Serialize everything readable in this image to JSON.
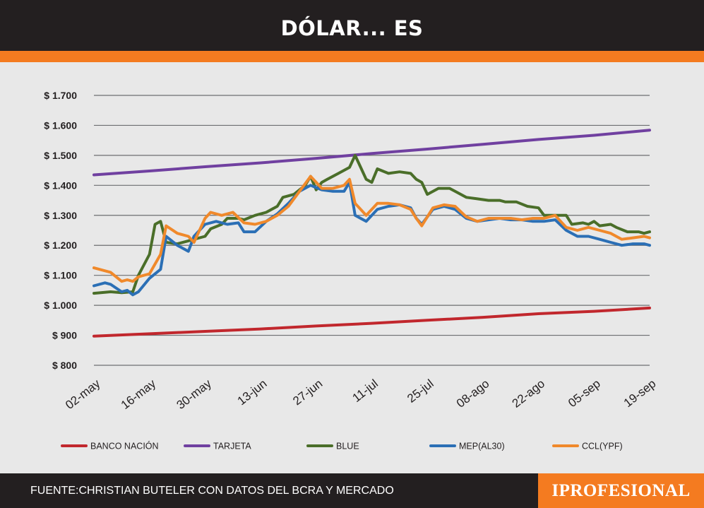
{
  "header": {
    "title": "DÓLAR... ES"
  },
  "footer": {
    "source": "FUENTE:CHRISTIAN BUTELER CON DATOS DEL BCRA Y MERCADO",
    "brand": "IPROFESIONAL"
  },
  "colors": {
    "header_bg": "#231f20",
    "accent": "#f47b20",
    "grid": "#6d6e71",
    "background": "#e8e8e8"
  },
  "chart_data": {
    "type": "line",
    "ylim": [
      800,
      1700
    ],
    "y_ticks": [
      {
        "value": 800,
        "label": "$ 800"
      },
      {
        "value": 900,
        "label": "$ 900"
      },
      {
        "value": 1000,
        "label": "$ 1.000"
      },
      {
        "value": 1100,
        "label": "$ 1.100"
      },
      {
        "value": 1200,
        "label": "$ 1.200"
      },
      {
        "value": 1300,
        "label": "$ 1.300"
      },
      {
        "value": 1400,
        "label": "$ 1.400"
      },
      {
        "value": 1500,
        "label": "$ 1.500"
      },
      {
        "value": 1600,
        "label": "$ 1.600"
      },
      {
        "value": 1700,
        "label": "$ 1.700"
      }
    ],
    "x_ticks": [
      "02-may",
      "16-may",
      "30-may",
      "13-jun",
      "27-jun",
      "11-jul",
      "25-jul",
      "08-ago",
      "22-ago",
      "05-sep",
      "19-sep"
    ],
    "grid": true,
    "legend_position": "bottom",
    "series": [
      {
        "name": "BANCO NACIÓN",
        "color": "#c1272d",
        "points": [
          [
            0,
            897
          ],
          [
            10,
            905
          ],
          [
            20,
            913
          ],
          [
            30,
            921
          ],
          [
            40,
            931
          ],
          [
            50,
            940
          ],
          [
            60,
            950
          ],
          [
            70,
            960
          ],
          [
            80,
            972
          ],
          [
            90,
            980
          ],
          [
            100,
            991
          ]
        ]
      },
      {
        "name": "TARJETA",
        "color": "#7040a0",
        "points": [
          [
            0,
            1435
          ],
          [
            10,
            1448
          ],
          [
            20,
            1462
          ],
          [
            30,
            1475
          ],
          [
            40,
            1490
          ],
          [
            50,
            1506
          ],
          [
            60,
            1521
          ],
          [
            70,
            1537
          ],
          [
            80,
            1553
          ],
          [
            90,
            1567
          ],
          [
            100,
            1584
          ]
        ]
      },
      {
        "name": "BLUE",
        "color": "#4a6e29",
        "points": [
          [
            0,
            1040
          ],
          [
            3,
            1045
          ],
          [
            5,
            1042
          ],
          [
            7,
            1045
          ],
          [
            8,
            1100
          ],
          [
            10,
            1170
          ],
          [
            11,
            1270
          ],
          [
            12,
            1280
          ],
          [
            13,
            1210
          ],
          [
            15,
            1205
          ],
          [
            17,
            1215
          ],
          [
            18,
            1220
          ],
          [
            20,
            1230
          ],
          [
            21,
            1255
          ],
          [
            23,
            1270
          ],
          [
            24,
            1290
          ],
          [
            26,
            1290
          ],
          [
            27,
            1285
          ],
          [
            29,
            1300
          ],
          [
            31,
            1310
          ],
          [
            33,
            1330
          ],
          [
            34,
            1360
          ],
          [
            36,
            1370
          ],
          [
            38,
            1400
          ],
          [
            39,
            1430
          ],
          [
            40,
            1385
          ],
          [
            41,
            1410
          ],
          [
            42,
            1420
          ],
          [
            44,
            1440
          ],
          [
            46,
            1460
          ],
          [
            47,
            1500
          ],
          [
            48,
            1460
          ],
          [
            49,
            1420
          ],
          [
            50,
            1410
          ],
          [
            51,
            1455
          ],
          [
            53,
            1440
          ],
          [
            55,
            1445
          ],
          [
            57,
            1440
          ],
          [
            58,
            1420
          ],
          [
            59,
            1410
          ],
          [
            60,
            1370
          ],
          [
            62,
            1390
          ],
          [
            64,
            1390
          ],
          [
            65,
            1380
          ],
          [
            67,
            1360
          ],
          [
            69,
            1355
          ],
          [
            71,
            1350
          ],
          [
            73,
            1350
          ],
          [
            74,
            1345
          ],
          [
            76,
            1345
          ],
          [
            78,
            1330
          ],
          [
            80,
            1325
          ],
          [
            81,
            1300
          ],
          [
            83,
            1300
          ],
          [
            85,
            1300
          ],
          [
            86,
            1270
          ],
          [
            88,
            1275
          ],
          [
            89,
            1270
          ],
          [
            90,
            1280
          ],
          [
            91,
            1265
          ],
          [
            93,
            1270
          ],
          [
            94,
            1260
          ],
          [
            96,
            1245
          ],
          [
            98,
            1245
          ],
          [
            99,
            1240
          ],
          [
            100,
            1245
          ]
        ]
      },
      {
        "name": "MEP(AL30)",
        "color": "#2b6fb5",
        "points": [
          [
            0,
            1065
          ],
          [
            2,
            1075
          ],
          [
            3,
            1070
          ],
          [
            5,
            1045
          ],
          [
            6,
            1050
          ],
          [
            7,
            1035
          ],
          [
            8,
            1045
          ],
          [
            10,
            1090
          ],
          [
            12,
            1120
          ],
          [
            13,
            1230
          ],
          [
            15,
            1200
          ],
          [
            17,
            1180
          ],
          [
            18,
            1230
          ],
          [
            20,
            1270
          ],
          [
            22,
            1280
          ],
          [
            24,
            1270
          ],
          [
            26,
            1275
          ],
          [
            27,
            1245
          ],
          [
            29,
            1245
          ],
          [
            31,
            1280
          ],
          [
            33,
            1305
          ],
          [
            35,
            1340
          ],
          [
            37,
            1380
          ],
          [
            39,
            1400
          ],
          [
            41,
            1385
          ],
          [
            43,
            1380
          ],
          [
            45,
            1380
          ],
          [
            46,
            1410
          ],
          [
            47,
            1300
          ],
          [
            49,
            1280
          ],
          [
            51,
            1320
          ],
          [
            53,
            1330
          ],
          [
            55,
            1335
          ],
          [
            57,
            1325
          ],
          [
            58,
            1290
          ],
          [
            59,
            1270
          ],
          [
            61,
            1320
          ],
          [
            63,
            1330
          ],
          [
            65,
            1320
          ],
          [
            67,
            1290
          ],
          [
            69,
            1280
          ],
          [
            71,
            1285
          ],
          [
            73,
            1290
          ],
          [
            75,
            1285
          ],
          [
            77,
            1285
          ],
          [
            79,
            1280
          ],
          [
            81,
            1280
          ],
          [
            83,
            1285
          ],
          [
            85,
            1250
          ],
          [
            87,
            1230
          ],
          [
            89,
            1230
          ],
          [
            91,
            1220
          ],
          [
            93,
            1210
          ],
          [
            95,
            1200
          ],
          [
            97,
            1205
          ],
          [
            99,
            1205
          ],
          [
            100,
            1200
          ]
        ]
      },
      {
        "name": "CCL(YPF)",
        "color": "#f0892b",
        "points": [
          [
            0,
            1125
          ],
          [
            2,
            1115
          ],
          [
            3,
            1110
          ],
          [
            5,
            1080
          ],
          [
            6,
            1085
          ],
          [
            7,
            1080
          ],
          [
            8,
            1095
          ],
          [
            10,
            1105
          ],
          [
            12,
            1170
          ],
          [
            13,
            1265
          ],
          [
            15,
            1240
          ],
          [
            17,
            1230
          ],
          [
            18,
            1210
          ],
          [
            20,
            1290
          ],
          [
            21,
            1310
          ],
          [
            23,
            1300
          ],
          [
            25,
            1310
          ],
          [
            27,
            1275
          ],
          [
            29,
            1270
          ],
          [
            31,
            1280
          ],
          [
            33,
            1300
          ],
          [
            35,
            1330
          ],
          [
            37,
            1380
          ],
          [
            39,
            1430
          ],
          [
            41,
            1390
          ],
          [
            43,
            1390
          ],
          [
            45,
            1400
          ],
          [
            46,
            1420
          ],
          [
            47,
            1340
          ],
          [
            49,
            1300
          ],
          [
            51,
            1340
          ],
          [
            53,
            1340
          ],
          [
            55,
            1335
          ],
          [
            57,
            1320
          ],
          [
            58,
            1290
          ],
          [
            59,
            1265
          ],
          [
            61,
            1325
          ],
          [
            63,
            1335
          ],
          [
            65,
            1330
          ],
          [
            67,
            1295
          ],
          [
            69,
            1280
          ],
          [
            71,
            1290
          ],
          [
            73,
            1290
          ],
          [
            75,
            1290
          ],
          [
            77,
            1285
          ],
          [
            79,
            1290
          ],
          [
            81,
            1290
          ],
          [
            83,
            1300
          ],
          [
            85,
            1260
          ],
          [
            87,
            1250
          ],
          [
            89,
            1260
          ],
          [
            91,
            1250
          ],
          [
            93,
            1240
          ],
          [
            95,
            1220
          ],
          [
            97,
            1225
          ],
          [
            99,
            1230
          ],
          [
            100,
            1225
          ]
        ]
      }
    ]
  }
}
